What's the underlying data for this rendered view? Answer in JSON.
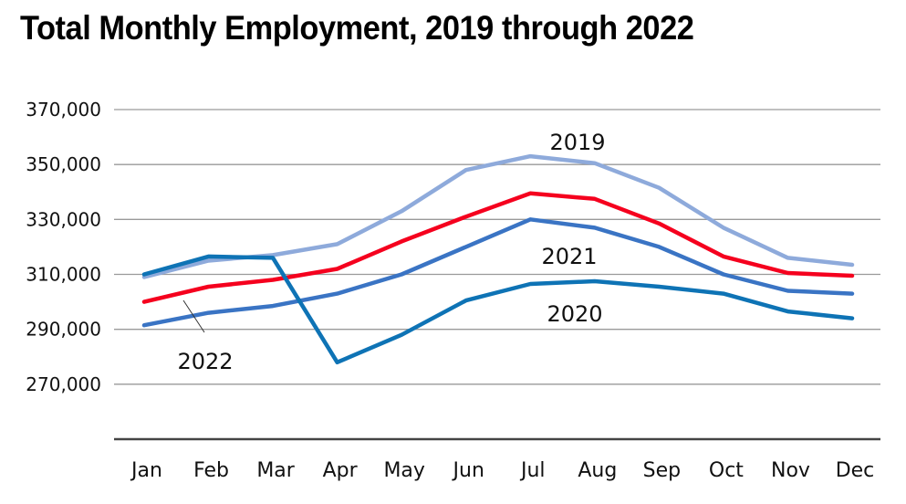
{
  "chart_data": {
    "type": "line",
    "title": "Total Monthly Employment, 2019 through 2022",
    "xlabel": "",
    "ylabel": "",
    "categories": [
      "Jan",
      "Feb",
      "Mar",
      "Apr",
      "May",
      "Jun",
      "Jul",
      "Aug",
      "Sep",
      "Oct",
      "Nov",
      "Dec"
    ],
    "ylim": [
      250000,
      370000
    ],
    "yticks": [
      270000,
      290000,
      310000,
      330000,
      350000,
      370000
    ],
    "ytick_labels": [
      "270,000",
      "290,000",
      "310,000",
      "330,000",
      "350,000",
      "370,000"
    ],
    "grid": true,
    "legend": "none (direct line labels)",
    "series": [
      {
        "name": "2019",
        "color": "#8eaadb",
        "label_position": "above peak",
        "values": [
          309000,
          315000,
          317000,
          321000,
          333000,
          348000,
          353000,
          350500,
          341500,
          327000,
          316000,
          313500
        ]
      },
      {
        "name": "2020",
        "color": "#0e73b5",
        "label_position": "below Aug",
        "values": [
          310000,
          316500,
          316000,
          278000,
          288000,
          300500,
          306500,
          307500,
          305500,
          303000,
          296500,
          294000
        ]
      },
      {
        "name": "2021",
        "color": "#3a74c4",
        "label_position": "below Aug",
        "values": [
          291500,
          296000,
          298500,
          303000,
          310000,
          320000,
          330000,
          327000,
          320000,
          310000,
          304000,
          303000
        ]
      },
      {
        "name": "2022",
        "color": "#f5001e",
        "label_position": "below Feb with leader line",
        "values": [
          300000,
          305500,
          308000,
          312000,
          322000,
          331000,
          339500,
          337500,
          328500,
          316500,
          310500,
          309500
        ]
      }
    ]
  }
}
